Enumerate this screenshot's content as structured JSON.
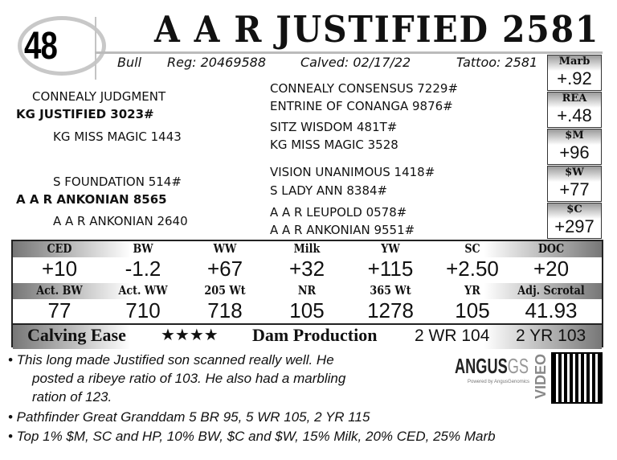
{
  "lot_number": "48",
  "title": "A A R JUSTIFIED 2581",
  "info": {
    "sex": "Bull",
    "reg": "Reg: 20469588",
    "calved": "Calved: 02/17/22",
    "tattoo": "Tattoo: 2581"
  },
  "pedigree": {
    "sire": "KG JUSTIFIED 3023#",
    "sire_sire": "CONNEALY JUDGMENT",
    "sire_dam": "KG MISS MAGIC 1443",
    "dam": "A A R ANKONIAN 8565",
    "dam_sire": "S FOUNDATION 514#",
    "dam_dam": "A A R ANKONIAN 2640",
    "right": [
      "CONNEALY CONSENSUS 7229#",
      "ENTRINE OF CONANGA 9876#",
      "SITZ WISDOM 481T#",
      "KG MISS MAGIC 3528",
      "VISION UNANIMOUS 1418#",
      "S LADY ANN 8384#",
      "A A R LEUPOLD 0578#",
      "A A R ANKONIAN 9551#"
    ]
  },
  "side_epds": [
    {
      "label": "Marb",
      "value": "+.92"
    },
    {
      "label": "REA",
      "value": "+.48"
    },
    {
      "label": "$M",
      "value": "+96"
    },
    {
      "label": "$W",
      "value": "+77"
    },
    {
      "label": "$C",
      "value": "+297"
    }
  ],
  "epds": [
    {
      "label": "CED",
      "value": "+10"
    },
    {
      "label": "BW",
      "value": "-1.2"
    },
    {
      "label": "WW",
      "value": "+67"
    },
    {
      "label": "Milk",
      "value": "+32"
    },
    {
      "label": "YW",
      "value": "+115"
    },
    {
      "label": "SC",
      "value": "+2.50"
    },
    {
      "label": "DOC",
      "value": "+20"
    }
  ],
  "actuals": [
    {
      "label": "Act. BW",
      "value": "77"
    },
    {
      "label": "Act. WW",
      "value": "710"
    },
    {
      "label": "205 Wt",
      "value": "718"
    },
    {
      "label": "NR",
      "value": "105"
    },
    {
      "label": "365 Wt",
      "value": "1278"
    },
    {
      "label": "YR",
      "value": "105"
    },
    {
      "label": "Adj. Scrotal",
      "value": "41.93"
    }
  ],
  "calving_ease": {
    "label": "Calving Ease",
    "stars": "★★★★",
    "rating": 4
  },
  "dam_production": {
    "label": "Dam Production",
    "wr": "2 WR 104",
    "yr": "2 YR 103"
  },
  "notes": [
    "• This long made Justified son scanned really well. He",
    "posted a ribeye ratio of 103. He also had a marbling",
    "ration of 123.",
    "• Pathfinder Great Granddam 5 BR 95, 5 WR 105, 2 YR 115",
    "• Top 1% $M, SC and HP, 10% BW, $C and $W, 15% Milk, 20% CED, 25% Marb"
  ],
  "angus_logo": {
    "main": "ANGUS",
    "suffix": "GS",
    "tagline": "Powered by AngusGenomics"
  },
  "video_label": "VIDEO"
}
